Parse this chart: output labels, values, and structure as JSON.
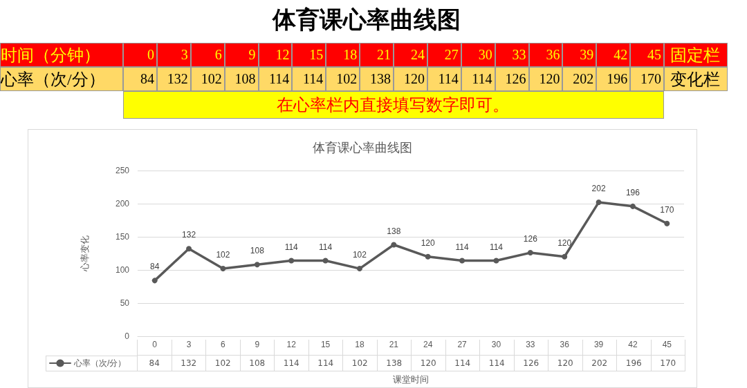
{
  "chart_data": {
    "type": "line",
    "title": "体育课心率曲线图",
    "subtitle": "体育课心率曲线图",
    "xlabel": "课堂时间",
    "ylabel": "心率变化",
    "annotations": [
      "时间（分钟）",
      "固定栏",
      "变化栏",
      "在心率栏内直接填写数字即可。"
    ],
    "categories": [
      "0",
      "3",
      "6",
      "9",
      "12",
      "15",
      "18",
      "21",
      "24",
      "27",
      "30",
      "33",
      "36",
      "39",
      "42",
      "45"
    ],
    "series": [
      {
        "name": "心率（次/分）",
        "color": "#595959",
        "values": [
          84,
          132,
          102,
          108,
          114,
          114,
          102,
          138,
          120,
          114,
          114,
          126,
          120,
          202,
          196,
          170
        ],
        "value_labels": [
          "84",
          "132",
          "102",
          "108",
          "114",
          "114",
          "102",
          "138",
          "120",
          "114",
          "114",
          "126",
          "120",
          "202",
          "196",
          "170"
        ]
      }
    ],
    "ylim": [
      0,
      250
    ],
    "yticks": [
      0,
      50,
      100,
      150,
      200,
      250
    ],
    "grid": "y",
    "legend": "bottom left",
    "marker": "circle",
    "line_style": "solid"
  }
}
